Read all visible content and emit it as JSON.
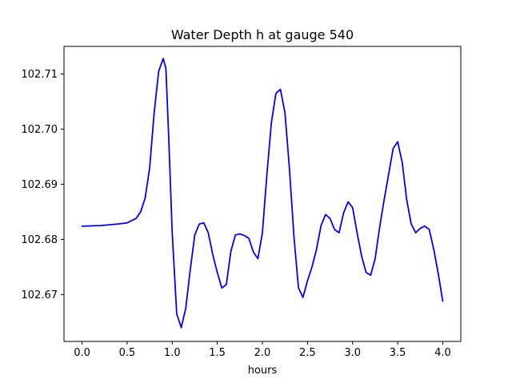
{
  "chart_data": {
    "type": "line",
    "title": "Water Depth h at gauge 540",
    "xlabel": "hours",
    "ylabel": "",
    "xlim": [
      -0.2,
      4.2
    ],
    "ylim": [
      102.6615,
      102.715
    ],
    "xticks": [
      0.0,
      0.5,
      1.0,
      1.5,
      2.0,
      2.5,
      3.0,
      3.5,
      4.0
    ],
    "xtick_labels": [
      "0.0",
      "0.5",
      "1.0",
      "1.5",
      "2.0",
      "2.5",
      "3.0",
      "3.5",
      "4.0"
    ],
    "yticks": [
      102.67,
      102.68,
      102.69,
      102.7,
      102.71
    ],
    "ytick_labels": [
      "102.67",
      "102.68",
      "102.69",
      "102.70",
      "102.71"
    ],
    "grid": false,
    "legend": "none",
    "series": [
      {
        "color": "#0000ff",
        "x": [
          0.0,
          0.2,
          0.4,
          0.5,
          0.6,
          0.65,
          0.7,
          0.75,
          0.8,
          0.85,
          0.9,
          0.93,
          0.96,
          1.0,
          1.05,
          1.1,
          1.15,
          1.2,
          1.25,
          1.3,
          1.35,
          1.4,
          1.45,
          1.5,
          1.55,
          1.6,
          1.65,
          1.7,
          1.75,
          1.8,
          1.85,
          1.9,
          1.95,
          2.0,
          2.05,
          2.1,
          2.15,
          2.2,
          2.25,
          2.3,
          2.35,
          2.4,
          2.45,
          2.5,
          2.55,
          2.6,
          2.65,
          2.7,
          2.75,
          2.8,
          2.85,
          2.9,
          2.95,
          3.0,
          3.05,
          3.1,
          3.15,
          3.2,
          3.25,
          3.3,
          3.35,
          3.4,
          3.45,
          3.5,
          3.55,
          3.6,
          3.65,
          3.7,
          3.75,
          3.8,
          3.85,
          3.9,
          3.95,
          4.0
        ],
        "values": [
          102.6824,
          102.6825,
          102.6828,
          102.683,
          102.6838,
          102.685,
          102.6875,
          102.693,
          102.703,
          102.7105,
          102.7128,
          102.711,
          102.699,
          102.6812,
          102.6665,
          102.664,
          102.6675,
          102.6745,
          102.6808,
          102.6828,
          102.683,
          102.6812,
          102.6772,
          102.674,
          102.6712,
          102.6718,
          102.6778,
          102.6808,
          102.681,
          102.6807,
          102.6802,
          102.6777,
          102.6765,
          102.6812,
          102.6918,
          102.7012,
          102.7065,
          102.7072,
          102.703,
          102.6928,
          102.6805,
          102.6712,
          102.6695,
          102.6725,
          102.675,
          102.6782,
          102.6825,
          102.6845,
          102.6838,
          102.6818,
          102.6812,
          102.6848,
          102.6868,
          102.6858,
          102.6812,
          102.677,
          102.674,
          102.6735,
          102.6765,
          102.6822,
          102.6872,
          102.6918,
          102.6965,
          102.6977,
          102.694,
          102.6872,
          102.6828,
          102.6812,
          102.682,
          102.6824,
          102.6818,
          102.6782,
          102.6738,
          102.6688
        ]
      }
    ]
  }
}
